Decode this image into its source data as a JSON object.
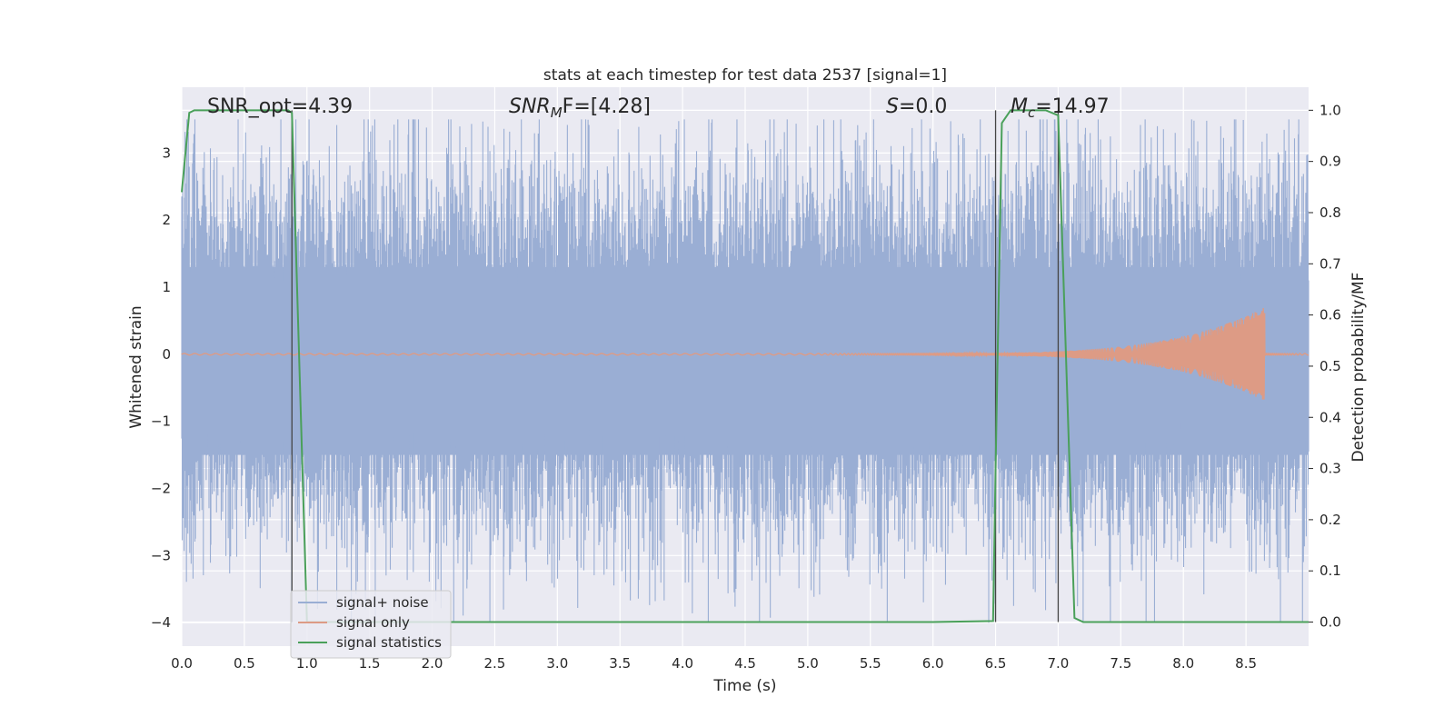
{
  "chart_data": {
    "type": "line",
    "title": "stats at each timestep for test data 2537 [signal=1]",
    "xlabel": "Time (s)",
    "ylabel_left": "Whitened strain",
    "ylabel_right": "Detection probability/MF",
    "xlim": [
      0.0,
      9.0
    ],
    "ylim_left": [
      -4.35,
      3.98
    ],
    "ylim_right": [
      -0.047,
      1.045
    ],
    "xticks": [
      "0.0",
      "0.5",
      "1.0",
      "1.5",
      "2.0",
      "2.5",
      "3.0",
      "3.5",
      "4.0",
      "4.5",
      "5.0",
      "5.5",
      "6.0",
      "6.5",
      "7.0",
      "7.5",
      "8.0",
      "8.5"
    ],
    "xtick_values": [
      0.0,
      0.5,
      1.0,
      1.5,
      2.0,
      2.5,
      3.0,
      3.5,
      4.0,
      4.5,
      5.0,
      5.5,
      6.0,
      6.5,
      7.0,
      7.5,
      8.0,
      8.5
    ],
    "yticks_left": [
      "3",
      "2",
      "1",
      "0",
      "−1",
      "−2",
      "−3",
      "−4"
    ],
    "ytick_left_values": [
      3,
      2,
      1,
      0,
      -1,
      -2,
      -3,
      -4
    ],
    "yticks_right": [
      "1.0",
      "0.9",
      "0.8",
      "0.7",
      "0.6",
      "0.5",
      "0.4",
      "0.3",
      "0.2",
      "0.1",
      "0.0"
    ],
    "ytick_right_values": [
      1.0,
      0.9,
      0.8,
      0.7,
      0.6,
      0.5,
      0.4,
      0.3,
      0.2,
      0.1,
      0.0
    ],
    "grid": true,
    "legend_placement": "lower-left",
    "annotations": {
      "snr_opt": "SNR_opt=4.39",
      "snr_mf_main": "SNR",
      "snr_mf_sub": "M",
      "snr_mf_rest": "F=[4.28]",
      "s_main": "S",
      "s_rest": "=0.0",
      "mc_main": "M",
      "mc_sub": "c",
      "mc_rest": "=14.97"
    },
    "vlines_x": [
      0.88,
      6.5,
      7.0
    ],
    "series": [
      {
        "name": "signal+ noise",
        "color": "#9aaed4",
        "axis": "left",
        "kind": "noise",
        "envelope_typical": 1.6,
        "envelope_peak": 3.5
      },
      {
        "name": "signal only",
        "color": "#dd9b85",
        "axis": "left",
        "kind": "chirp",
        "start": 5.0,
        "peak_time": 8.65,
        "peak_amplitude": 0.7
      },
      {
        "name": "signal statistics",
        "color": "#4aa05a",
        "axis": "right",
        "kind": "line",
        "x": [
          0.0,
          0.06,
          0.1,
          0.85,
          0.88,
          1.0,
          1.2,
          2.0,
          3.0,
          4.0,
          5.0,
          6.0,
          6.48,
          6.5,
          6.55,
          6.62,
          6.7,
          6.9,
          7.0,
          7.13,
          7.2,
          8.0,
          9.0
        ],
        "y": [
          0.84,
          0.995,
          1.0,
          1.0,
          0.995,
          0.0,
          0.0,
          0.0,
          0.0,
          0.0,
          0.0,
          0.0,
          0.002,
          0.3,
          0.975,
          1.0,
          1.0,
          1.0,
          0.99,
          0.008,
          0.0,
          0.0,
          0.0
        ]
      }
    ]
  }
}
